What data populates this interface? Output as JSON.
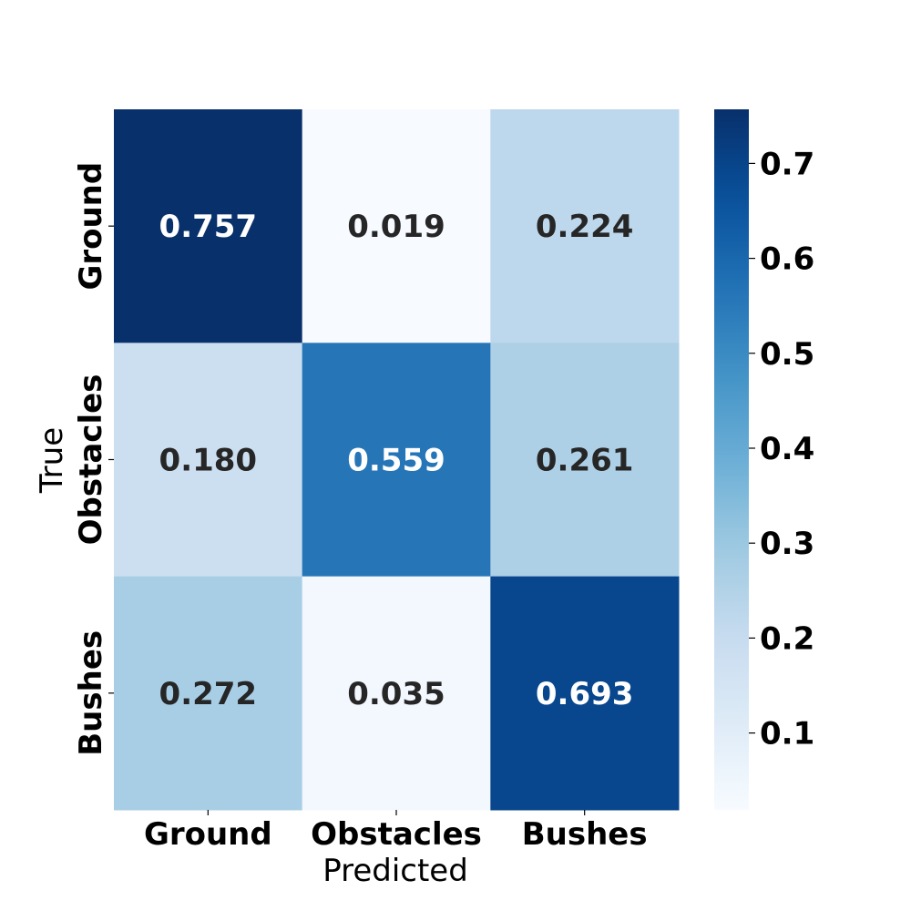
{
  "chart_data": {
    "type": "heatmap",
    "title": "",
    "xlabel": "Predicted",
    "ylabel": "True",
    "x_categories": [
      "Ground",
      "Obstacles",
      "Bushes"
    ],
    "y_categories": [
      "Ground",
      "Obstacles",
      "Bushes"
    ],
    "values": [
      [
        0.757,
        0.019,
        0.224
      ],
      [
        0.18,
        0.559,
        0.261
      ],
      [
        0.272,
        0.035,
        0.693
      ]
    ],
    "value_labels": [
      [
        "0.757",
        "0.019",
        "0.224"
      ],
      [
        "0.180",
        "0.559",
        "0.261"
      ],
      [
        "0.272",
        "0.035",
        "0.693"
      ]
    ],
    "colormap": "Blues",
    "color_range": [
      0.019,
      0.757
    ],
    "colorbar": {
      "ticks": [
        0.1,
        0.2,
        0.3,
        0.4,
        0.5,
        0.6,
        0.7
      ],
      "tick_labels": [
        "0.1",
        "0.2",
        "0.3",
        "0.4",
        "0.5",
        "0.6",
        "0.7"
      ],
      "placement": "right"
    },
    "annotation_colors": {
      "dark": "#262626",
      "light": "#ffffff"
    }
  }
}
